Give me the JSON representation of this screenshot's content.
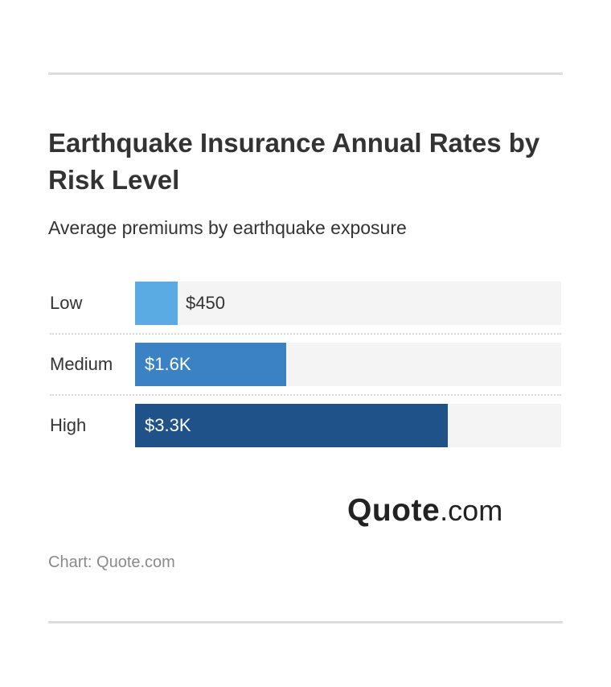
{
  "header": {
    "title": "Earthquake Insurance Annual Rates by Risk Level",
    "subtitle": "Average premiums by earthquake exposure"
  },
  "chart_data": {
    "type": "bar",
    "orientation": "horizontal",
    "title": "Earthquake Insurance Annual Rates by Risk Level",
    "subtitle": "Average premiums by earthquake exposure",
    "categories": [
      "Low",
      "Medium",
      "High"
    ],
    "values": [
      450,
      1600,
      3300
    ],
    "value_labels": [
      "$450",
      "$1.6K",
      "$3.3K"
    ],
    "xlim": [
      0,
      4500
    ],
    "colors": [
      "#5aaae3",
      "#3b82c4",
      "#1e5288"
    ],
    "track_color": "#f4f4f4",
    "grid": false,
    "legend": "none"
  },
  "branding": {
    "logo_bold": "Quote",
    "logo_light": ".com"
  },
  "footer": {
    "source": "Chart: Quote.com"
  }
}
